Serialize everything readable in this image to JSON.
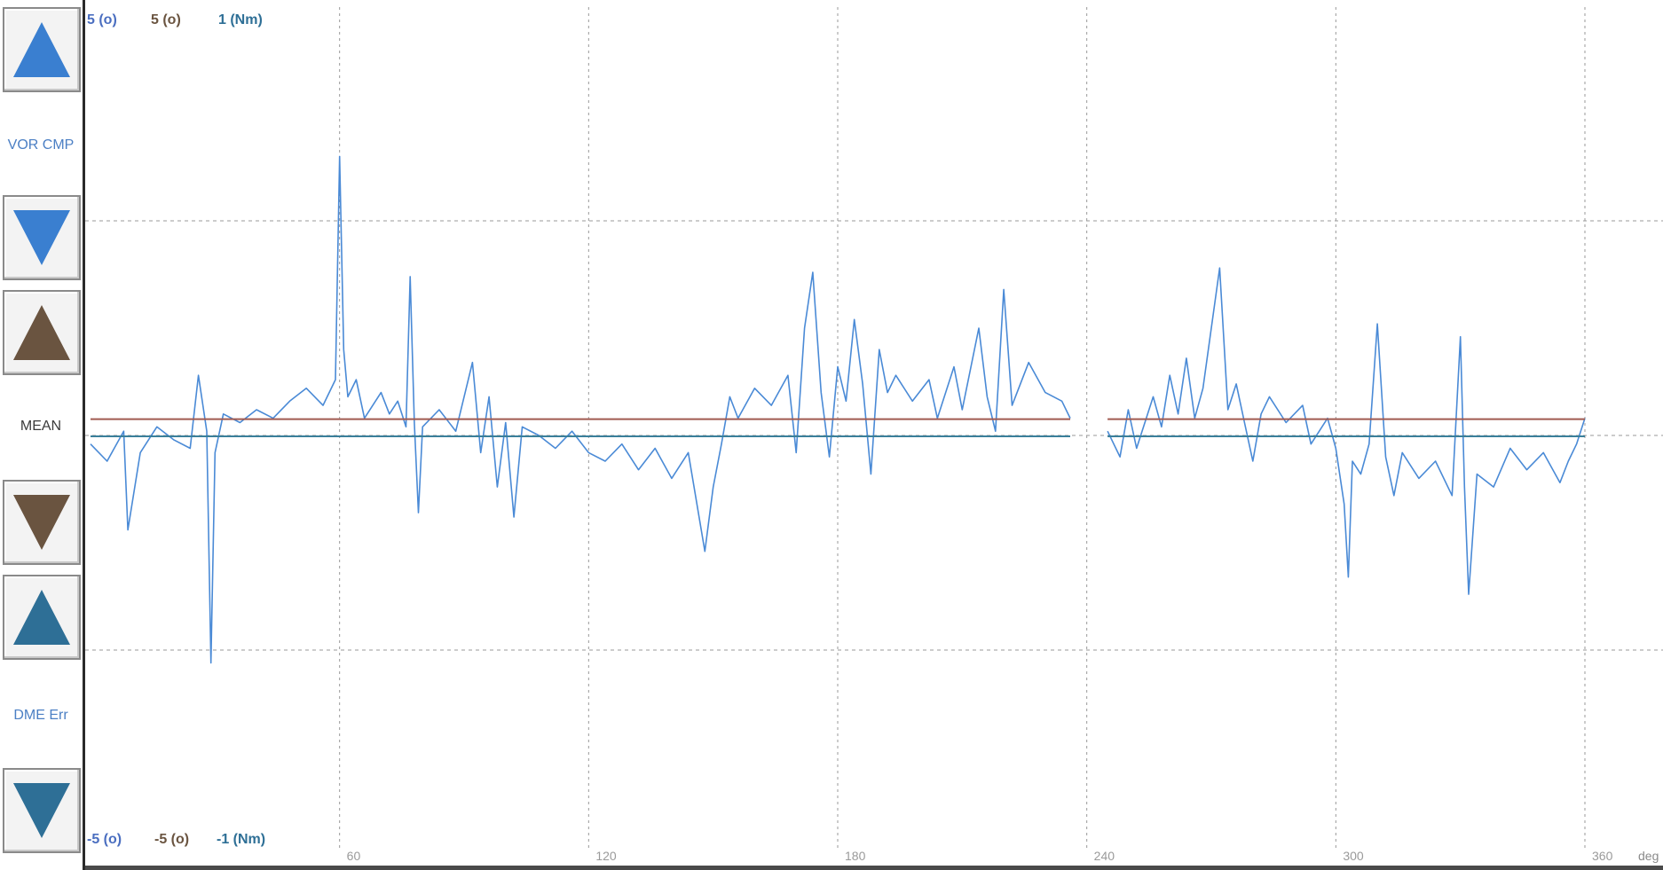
{
  "sidebar": {
    "buttons": [
      {
        "name": "vor-cmp-up-button",
        "direction": "up",
        "color": "#3a7fd0"
      },
      {
        "name": "vor-cmp-down-button",
        "direction": "down",
        "color": "#3a7fd0"
      },
      {
        "name": "mean-up-button",
        "direction": "up",
        "color": "#6a5440"
      },
      {
        "name": "mean-down-button",
        "direction": "down",
        "color": "#6a5440"
      },
      {
        "name": "dme-err-up-button",
        "direction": "up",
        "color": "#2e6f96"
      },
      {
        "name": "dme-err-down-button",
        "direction": "down",
        "color": "#2e6f96"
      }
    ],
    "labels": {
      "vor_cmp": "VOR CMP",
      "mean": "MEAN",
      "dme_err": "DME Err"
    }
  },
  "chart_data": {
    "type": "line",
    "top_scale_labels": [
      "5 (o)",
      "5 (o)",
      "1 (Nm)"
    ],
    "bottom_scale_labels": [
      "-5 (o)",
      "-5 (o)",
      "-1 (Nm)"
    ],
    "x_ticks": [
      "60",
      "120",
      "180",
      "240",
      "300",
      "360"
    ],
    "x_unit": "deg",
    "xlim": [
      0,
      360
    ],
    "ylim": [
      -5,
      5
    ],
    "grid": true,
    "colors": {
      "signal": "#4a8ad6",
      "mean": "#a05a50",
      "dme": "#3a7f9a",
      "grid": "#9a9a9a"
    },
    "series": [
      {
        "id": "signal",
        "segments": [
          [
            [
              0,
              -0.2
            ],
            [
              4,
              -0.6
            ],
            [
              8,
              0.1
            ],
            [
              9,
              -2.2
            ],
            [
              12,
              -0.4
            ],
            [
              16,
              0.2
            ],
            [
              20,
              -0.1
            ],
            [
              24,
              -0.3
            ],
            [
              26,
              1.4
            ],
            [
              28,
              0.1
            ],
            [
              29,
              -5.3
            ],
            [
              30,
              -0.4
            ],
            [
              32,
              0.5
            ],
            [
              36,
              0.3
            ],
            [
              40,
              0.6
            ],
            [
              44,
              0.4
            ],
            [
              48,
              0.8
            ],
            [
              52,
              1.1
            ],
            [
              56,
              0.7
            ],
            [
              59,
              1.3
            ],
            [
              60,
              6.5
            ],
            [
              61,
              2.0
            ],
            [
              62,
              0.9
            ],
            [
              64,
              1.3
            ],
            [
              66,
              0.4
            ],
            [
              70,
              1.0
            ],
            [
              72,
              0.5
            ],
            [
              74,
              0.8
            ],
            [
              76,
              0.2
            ],
            [
              77,
              3.7
            ],
            [
              78,
              0.3
            ],
            [
              79,
              -1.8
            ],
            [
              80,
              0.2
            ],
            [
              84,
              0.6
            ],
            [
              88,
              0.1
            ],
            [
              92,
              1.7
            ],
            [
              94,
              -0.4
            ],
            [
              96,
              0.9
            ],
            [
              98,
              -1.2
            ],
            [
              100,
              0.3
            ],
            [
              102,
              -1.9
            ],
            [
              104,
              0.2
            ],
            [
              108,
              0.0
            ],
            [
              112,
              -0.3
            ],
            [
              116,
              0.1
            ],
            [
              120,
              -0.4
            ],
            [
              124,
              -0.6
            ],
            [
              128,
              -0.2
            ],
            [
              132,
              -0.8
            ],
            [
              136,
              -0.3
            ],
            [
              140,
              -1.0
            ],
            [
              144,
              -0.4
            ],
            [
              148,
              -2.7
            ],
            [
              150,
              -1.2
            ],
            [
              152,
              -0.2
            ],
            [
              154,
              0.9
            ],
            [
              156,
              0.4
            ],
            [
              160,
              1.1
            ],
            [
              164,
              0.7
            ],
            [
              168,
              1.4
            ],
            [
              170,
              -0.4
            ],
            [
              172,
              2.5
            ],
            [
              174,
              3.8
            ],
            [
              176,
              1.0
            ],
            [
              178,
              -0.5
            ],
            [
              180,
              1.6
            ],
            [
              182,
              0.8
            ],
            [
              184,
              2.7
            ],
            [
              186,
              1.2
            ],
            [
              188,
              -0.9
            ],
            [
              190,
              2.0
            ],
            [
              192,
              1.0
            ],
            [
              194,
              1.4
            ],
            [
              198,
              0.8
            ],
            [
              202,
              1.3
            ],
            [
              204,
              0.4
            ],
            [
              208,
              1.6
            ],
            [
              210,
              0.6
            ],
            [
              214,
              2.5
            ],
            [
              216,
              0.9
            ],
            [
              218,
              0.1
            ],
            [
              220,
              3.4
            ],
            [
              222,
              0.7
            ],
            [
              226,
              1.7
            ],
            [
              230,
              1.0
            ],
            [
              234,
              0.8
            ],
            [
              236,
              0.4
            ]
          ],
          [
            [
              245,
              0.1
            ],
            [
              248,
              -0.5
            ],
            [
              250,
              0.6
            ],
            [
              252,
              -0.3
            ],
            [
              256,
              0.9
            ],
            [
              258,
              0.2
            ],
            [
              260,
              1.4
            ],
            [
              262,
              0.5
            ],
            [
              264,
              1.8
            ],
            [
              266,
              0.4
            ],
            [
              268,
              1.1
            ],
            [
              272,
              3.9
            ],
            [
              274,
              0.6
            ],
            [
              276,
              1.2
            ],
            [
              278,
              0.3
            ],
            [
              280,
              -0.6
            ],
            [
              282,
              0.5
            ],
            [
              284,
              0.9
            ],
            [
              288,
              0.3
            ],
            [
              292,
              0.7
            ],
            [
              294,
              -0.2
            ],
            [
              298,
              0.4
            ],
            [
              300,
              -0.3
            ],
            [
              302,
              -1.6
            ],
            [
              303,
              -3.3
            ],
            [
              304,
              -0.6
            ],
            [
              306,
              -0.9
            ],
            [
              308,
              -0.2
            ],
            [
              310,
              2.6
            ],
            [
              312,
              -0.5
            ],
            [
              314,
              -1.4
            ],
            [
              316,
              -0.4
            ],
            [
              320,
              -1.0
            ],
            [
              324,
              -0.6
            ],
            [
              328,
              -1.4
            ],
            [
              330,
              2.3
            ],
            [
              331,
              -1.2
            ],
            [
              332,
              -3.7
            ],
            [
              334,
              -0.9
            ],
            [
              338,
              -1.2
            ],
            [
              342,
              -0.3
            ],
            [
              346,
              -0.8
            ],
            [
              350,
              -0.4
            ],
            [
              354,
              -1.1
            ],
            [
              356,
              -0.6
            ],
            [
              358,
              -0.2
            ],
            [
              360,
              0.4
            ]
          ]
        ]
      },
      {
        "id": "mean",
        "segments": [
          [
            [
              0,
              0.38
            ],
            [
              236,
              0.38
            ]
          ],
          [
            [
              245,
              0.38
            ],
            [
              360,
              0.38
            ]
          ]
        ]
      },
      {
        "id": "dme",
        "segments": [
          [
            [
              0,
              -0.02
            ],
            [
              236,
              -0.02
            ]
          ],
          [
            [
              245,
              -0.02
            ],
            [
              360,
              -0.02
            ]
          ]
        ]
      }
    ]
  }
}
